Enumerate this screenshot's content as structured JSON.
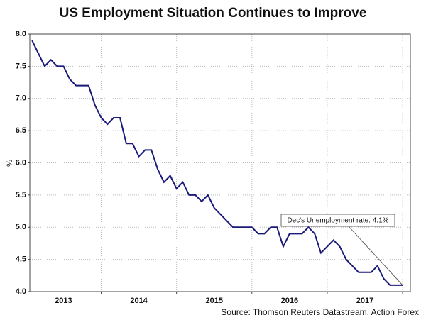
{
  "chart_data": {
    "type": "line",
    "title": "US Employment Situation Continues to Improve",
    "ylabel": "%",
    "source": "Source: Thomson Reuters Datastream, Action Forex",
    "annotation": "Dec's Unemployment rate: 4.1%",
    "x": [
      2013,
      2013.083,
      2013.167,
      2013.25,
      2013.333,
      2013.417,
      2013.5,
      2013.583,
      2013.667,
      2013.75,
      2013.833,
      2013.917,
      2014,
      2014.083,
      2014.167,
      2014.25,
      2014.333,
      2014.417,
      2014.5,
      2014.583,
      2014.667,
      2014.75,
      2014.833,
      2014.917,
      2015,
      2015.083,
      2015.167,
      2015.25,
      2015.333,
      2015.417,
      2015.5,
      2015.583,
      2015.667,
      2015.75,
      2015.833,
      2015.917,
      2016,
      2016.083,
      2016.167,
      2016.25,
      2016.333,
      2016.417,
      2016.5,
      2016.583,
      2016.667,
      2016.75,
      2016.833,
      2016.917,
      2017,
      2017.083,
      2017.167,
      2017.25,
      2017.333,
      2017.417,
      2017.5,
      2017.583,
      2017.667,
      2017.75,
      2017.833,
      2017.917
    ],
    "series": [
      {
        "name": "Unemployment rate",
        "color": "#1a1a7a",
        "values": [
          7.9,
          7.7,
          7.5,
          7.6,
          7.5,
          7.5,
          7.3,
          7.2,
          7.2,
          7.2,
          6.9,
          6.7,
          6.6,
          6.7,
          6.7,
          6.3,
          6.3,
          6.1,
          6.2,
          6.2,
          5.9,
          5.7,
          5.8,
          5.6,
          5.7,
          5.5,
          5.5,
          5.4,
          5.5,
          5.3,
          5.2,
          5.1,
          5.0,
          5.0,
          5.0,
          5.0,
          4.9,
          4.9,
          5.0,
          5.0,
          4.7,
          4.9,
          4.9,
          4.9,
          5.0,
          4.9,
          4.6,
          4.7,
          4.8,
          4.7,
          4.5,
          4.4,
          4.3,
          4.3,
          4.3,
          4.4,
          4.2,
          4.1,
          4.1,
          4.1
        ]
      }
    ],
    "xlim": [
      2012.97,
      2018.02
    ],
    "xticks": [
      {
        "value": 2013.417,
        "label": "2013"
      },
      {
        "value": 2014.417,
        "label": "2014"
      },
      {
        "value": 2015.417,
        "label": "2015"
      },
      {
        "value": 2016.417,
        "label": "2016"
      },
      {
        "value": 2017.417,
        "label": "2017"
      }
    ],
    "xgrid": [
      2013.917,
      2014.917,
      2015.917,
      2016.917,
      2017.917
    ],
    "ylim": [
      4.0,
      8.0
    ],
    "yticks": [
      {
        "value": 4.0,
        "label": "4.0"
      },
      {
        "value": 4.5,
        "label": "4.5"
      },
      {
        "value": 5.0,
        "label": "5.0"
      },
      {
        "value": 5.5,
        "label": "5.5"
      },
      {
        "value": 6.0,
        "label": "6.0"
      },
      {
        "value": 6.5,
        "label": "6.5"
      },
      {
        "value": 7.0,
        "label": "7.0"
      },
      {
        "value": 7.5,
        "label": "7.5"
      },
      {
        "value": 8.0,
        "label": "8.0"
      }
    ],
    "grid": true
  }
}
